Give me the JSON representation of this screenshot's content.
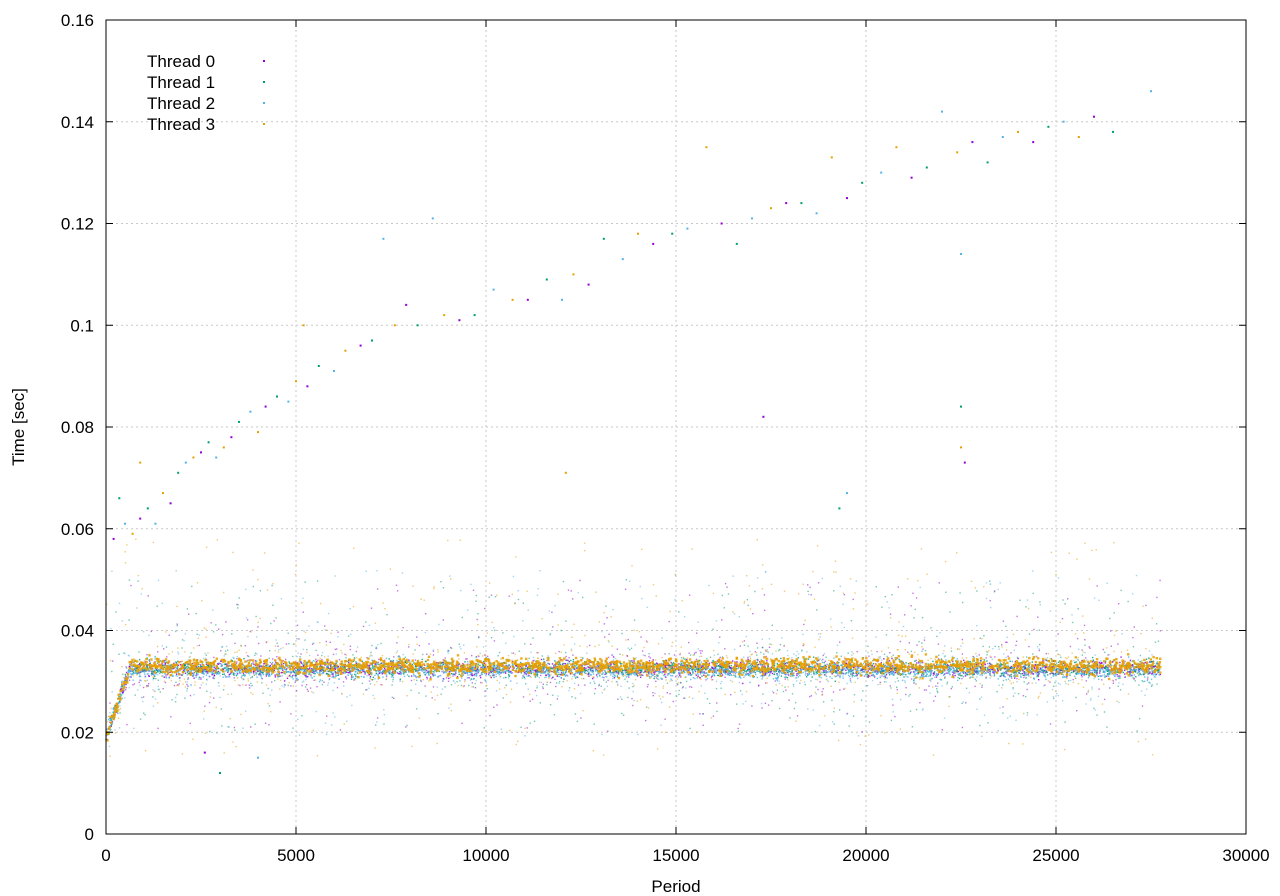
{
  "chart_data": {
    "type": "scatter",
    "title": "",
    "xlabel": "Period",
    "ylabel": "Time [sec]",
    "xlim": [
      0,
      30000
    ],
    "ylim": [
      0,
      0.16
    ],
    "x_ticks": [
      "0",
      "5000",
      "10000",
      "15000",
      "20000",
      "25000",
      "30000"
    ],
    "y_ticks": [
      "0",
      "0.02",
      "0.04",
      "0.06",
      "0.08",
      "0.1",
      "0.12",
      "0.14",
      "0.16"
    ],
    "grid": true,
    "legend_position": "top-left",
    "x_max_data": 27750,
    "series": [
      {
        "name": "Thread 0",
        "color": "#9400d3",
        "steady_mean": 0.0325,
        "typical_range": [
          0.02,
          0.05
        ]
      },
      {
        "name": "Thread 1",
        "color": "#009e73",
        "steady_mean": 0.0325,
        "typical_range": [
          0.02,
          0.05
        ]
      },
      {
        "name": "Thread 2",
        "color": "#56b4e9",
        "steady_mean": 0.032,
        "typical_range": [
          0.019,
          0.052
        ]
      },
      {
        "name": "Thread 3",
        "color": "#e69f00",
        "steady_mean": 0.033,
        "typical_range": [
          0.015,
          0.058
        ]
      }
    ],
    "warmup": {
      "x_range": [
        0,
        600
      ],
      "y_start": 0.019,
      "y_end": 0.032
    },
    "outliers": [
      [
        200,
        0.058
      ],
      [
        350,
        0.066
      ],
      [
        500,
        0.061
      ],
      [
        700,
        0.059
      ],
      [
        900,
        0.062
      ],
      [
        1100,
        0.064
      ],
      [
        1300,
        0.061
      ],
      [
        1500,
        0.067
      ],
      [
        1700,
        0.065
      ],
      [
        1900,
        0.071
      ],
      [
        2100,
        0.073
      ],
      [
        2300,
        0.074
      ],
      [
        2500,
        0.075
      ],
      [
        2700,
        0.077
      ],
      [
        2900,
        0.074
      ],
      [
        3100,
        0.076
      ],
      [
        3300,
        0.078
      ],
      [
        3500,
        0.081
      ],
      [
        3800,
        0.083
      ],
      [
        4000,
        0.079
      ],
      [
        4200,
        0.084
      ],
      [
        4500,
        0.086
      ],
      [
        4800,
        0.085
      ],
      [
        5000,
        0.089
      ],
      [
        5300,
        0.088
      ],
      [
        5600,
        0.092
      ],
      [
        6000,
        0.091
      ],
      [
        6300,
        0.095
      ],
      [
        6700,
        0.096
      ],
      [
        7000,
        0.097
      ],
      [
        7300,
        0.117
      ],
      [
        7600,
        0.1
      ],
      [
        7900,
        0.104
      ],
      [
        8200,
        0.1
      ],
      [
        8600,
        0.121
      ],
      [
        8900,
        0.102
      ],
      [
        9300,
        0.101
      ],
      [
        9700,
        0.102
      ],
      [
        10200,
        0.107
      ],
      [
        10700,
        0.105
      ],
      [
        11100,
        0.105
      ],
      [
        11600,
        0.109
      ],
      [
        12000,
        0.105
      ],
      [
        12300,
        0.11
      ],
      [
        12700,
        0.108
      ],
      [
        13100,
        0.117
      ],
      [
        13600,
        0.113
      ],
      [
        14000,
        0.118
      ],
      [
        14400,
        0.116
      ],
      [
        14900,
        0.118
      ],
      [
        15300,
        0.119
      ],
      [
        15800,
        0.135
      ],
      [
        16200,
        0.12
      ],
      [
        16600,
        0.116
      ],
      [
        17000,
        0.121
      ],
      [
        17500,
        0.123
      ],
      [
        17900,
        0.124
      ],
      [
        18300,
        0.124
      ],
      [
        18700,
        0.122
      ],
      [
        19100,
        0.133
      ],
      [
        19500,
        0.125
      ],
      [
        19900,
        0.128
      ],
      [
        20400,
        0.13
      ],
      [
        20800,
        0.135
      ],
      [
        21200,
        0.129
      ],
      [
        21600,
        0.131
      ],
      [
        22000,
        0.142
      ],
      [
        22400,
        0.134
      ],
      [
        22800,
        0.136
      ],
      [
        23200,
        0.132
      ],
      [
        23600,
        0.137
      ],
      [
        24000,
        0.138
      ],
      [
        24400,
        0.136
      ],
      [
        24800,
        0.139
      ],
      [
        25200,
        0.14
      ],
      [
        25600,
        0.137
      ],
      [
        26000,
        0.141
      ],
      [
        26500,
        0.138
      ],
      [
        27500,
        0.146
      ],
      [
        5200,
        0.1
      ],
      [
        17300,
        0.082
      ],
      [
        22500,
        0.084
      ],
      [
        22500,
        0.114
      ],
      [
        22500,
        0.076
      ],
      [
        22600,
        0.073
      ],
      [
        19300,
        0.064
      ],
      [
        19500,
        0.067
      ],
      [
        12100,
        0.071
      ],
      [
        2600,
        0.016
      ],
      [
        3000,
        0.012
      ],
      [
        4000,
        0.015
      ],
      [
        900,
        0.073
      ]
    ]
  }
}
